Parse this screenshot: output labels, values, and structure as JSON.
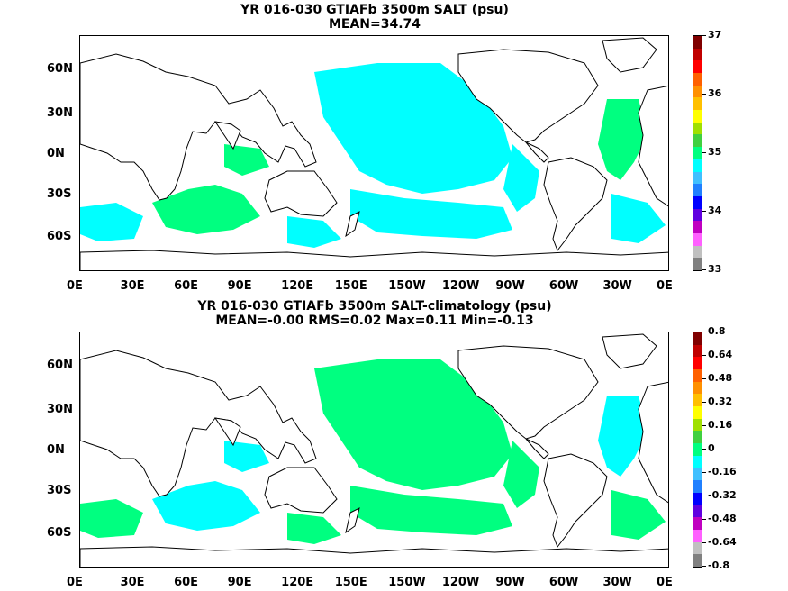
{
  "panels": [
    {
      "title_line1": "YR 016-030 GTIAFb 3500m SALT (psu)",
      "title_line2": "MEAN=34.74",
      "colorbar": {
        "labels": [
          "37",
          "36",
          "35",
          "34",
          "33"
        ],
        "colors": [
          "#800000",
          "#c00000",
          "#ff0000",
          "#ff6000",
          "#ff9000",
          "#ffc000",
          "#ffff00",
          "#a0e000",
          "#40d040",
          "#00ff80",
          "#00ffff",
          "#40c0ff",
          "#2080ff",
          "#0000ff",
          "#6000e0",
          "#c000c0",
          "#ff60ff",
          "#c0c0c0",
          "#808080"
        ]
      },
      "field": {
        "fill": "#00ffff",
        "accent": "#00ff80"
      }
    },
    {
      "title_line1": "YR 016-030 GTIAFb 3500m SALT-climatology (psu)",
      "title_line2": "MEAN=-0.00   RMS=0.02   Max=0.11   Min=-0.13",
      "colorbar": {
        "labels": [
          "0.8",
          "0.64",
          "0.48",
          "0.32",
          "0.16",
          "0",
          "-0.16",
          "-0.32",
          "-0.48",
          "-0.64",
          "-0.8"
        ],
        "colors": [
          "#800000",
          "#c00000",
          "#ff0000",
          "#ff6000",
          "#ff9000",
          "#ffc000",
          "#ffff00",
          "#a0e000",
          "#40d040",
          "#00ff80",
          "#00ffff",
          "#40c0ff",
          "#2080ff",
          "#0000ff",
          "#6000e0",
          "#c000c0",
          "#ff60ff",
          "#c0c0c0",
          "#808080"
        ]
      },
      "field": {
        "fill": "#00ff80",
        "accent": "#00ffff"
      }
    }
  ],
  "axes": {
    "lon_labels": [
      "0E",
      "30E",
      "60E",
      "90E",
      "120E",
      "150E",
      "150W",
      "120W",
      "90W",
      "60W",
      "30W",
      "0E"
    ],
    "lat_labels": [
      "60N",
      "30N",
      "0N",
      "30S",
      "60S"
    ]
  }
}
